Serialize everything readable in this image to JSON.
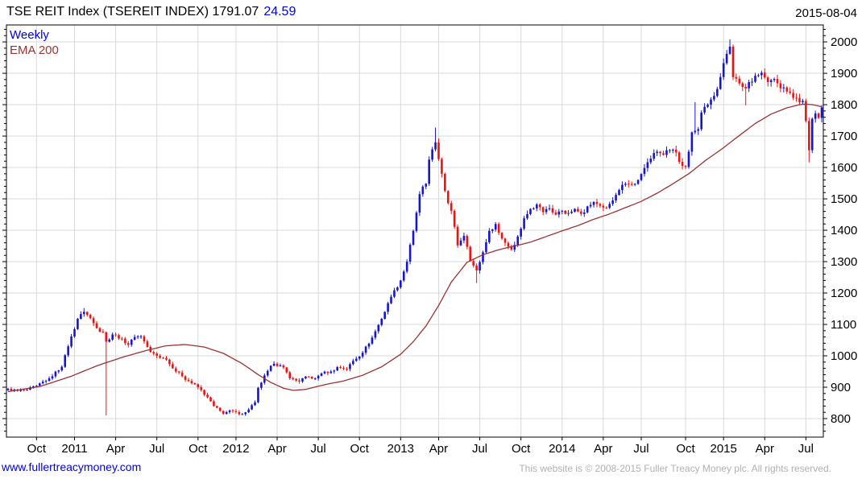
{
  "header": {
    "title": "TSE REIT Index (TSEREIT INDEX) 1791.07",
    "change": "24.59",
    "date": "2015-08-04"
  },
  "legend": {
    "series": "Weekly",
    "overlay": "EMA 200"
  },
  "footer": {
    "link": "www.fullertreacymoney.com",
    "copyright": "This website is © 2008-2015 Fuller Treacy Money plc. All rights reserved."
  },
  "colors": {
    "accent_blue": "#0000dd",
    "candle_up": "#1515d0",
    "candle_down": "#ee1111",
    "ema_line": "#993333",
    "grid": "#d9d9d9",
    "axis": "#000000",
    "muted_gray": "#b0b0b0"
  },
  "chart_data": {
    "type": "candlestick",
    "title": "TSE REIT Index (TSEREIT INDEX)",
    "series_name": "Weekly",
    "overlay_name": "EMA 200",
    "last_close": 1791.07,
    "last_change": 24.59,
    "as_of_date": "2015-08-04",
    "ylim": [
      741,
      2054
    ],
    "y_ticks": [
      800,
      900,
      1000,
      1100,
      1200,
      1300,
      1400,
      1500,
      1600,
      1700,
      1800,
      1900,
      2000
    ],
    "y_minor_step": 20,
    "grid": "on",
    "weeks_total": 258,
    "x_ticks": [
      {
        "label": "Oct",
        "week": 9
      },
      {
        "label": "2011",
        "week": 21
      },
      {
        "label": "Apr",
        "week": 34
      },
      {
        "label": "Jul",
        "week": 47
      },
      {
        "label": "Oct",
        "week": 60
      },
      {
        "label": "2012",
        "week": 72
      },
      {
        "label": "Apr",
        "week": 85
      },
      {
        "label": "Jul",
        "week": 98
      },
      {
        "label": "Oct",
        "week": 111
      },
      {
        "label": "2013",
        "week": 124
      },
      {
        "label": "Apr",
        "week": 136
      },
      {
        "label": "Jul",
        "week": 149
      },
      {
        "label": "Oct",
        "week": 162
      },
      {
        "label": "2014",
        "week": 175
      },
      {
        "label": "Apr",
        "week": 188
      },
      {
        "label": "Jul",
        "week": 200
      },
      {
        "label": "Oct",
        "week": 214
      },
      {
        "label": "2015",
        "week": 226
      },
      {
        "label": "Apr",
        "week": 239
      },
      {
        "label": "Jul",
        "week": 252
      }
    ],
    "close_anchors": [
      [
        0,
        895
      ],
      [
        3,
        888
      ],
      [
        6,
        892
      ],
      [
        9,
        905
      ],
      [
        13,
        928
      ],
      [
        17,
        965
      ],
      [
        19,
        1030
      ],
      [
        22,
        1118
      ],
      [
        24,
        1140
      ],
      [
        26,
        1120
      ],
      [
        28,
        1088
      ],
      [
        30,
        1075
      ],
      [
        31,
        1045
      ],
      [
        33,
        1068
      ],
      [
        36,
        1055
      ],
      [
        38,
        1035
      ],
      [
        40,
        1060
      ],
      [
        42,
        1062
      ],
      [
        45,
        1012
      ],
      [
        47,
        1000
      ],
      [
        50,
        988
      ],
      [
        52,
        960
      ],
      [
        55,
        935
      ],
      [
        57,
        920
      ],
      [
        60,
        900
      ],
      [
        63,
        868
      ],
      [
        65,
        840
      ],
      [
        68,
        815
      ],
      [
        70,
        826
      ],
      [
        73,
        814
      ],
      [
        75,
        820
      ],
      [
        78,
        852
      ],
      [
        79,
        898
      ],
      [
        82,
        952
      ],
      [
        84,
        975
      ],
      [
        87,
        963
      ],
      [
        89,
        928
      ],
      [
        92,
        918
      ],
      [
        94,
        934
      ],
      [
        97,
        928
      ],
      [
        99,
        944
      ],
      [
        102,
        950
      ],
      [
        104,
        964
      ],
      [
        107,
        958
      ],
      [
        109,
        984
      ],
      [
        112,
        1010
      ],
      [
        115,
        1058
      ],
      [
        118,
        1118
      ],
      [
        121,
        1188
      ],
      [
        124,
        1240
      ],
      [
        126,
        1300
      ],
      [
        128,
        1398
      ],
      [
        130,
        1515
      ],
      [
        132,
        1548
      ],
      [
        133,
        1625
      ],
      [
        135,
        1680
      ],
      [
        137,
        1580
      ],
      [
        138,
        1525
      ],
      [
        140,
        1462
      ],
      [
        142,
        1352
      ],
      [
        144,
        1382
      ],
      [
        146,
        1302
      ],
      [
        148,
        1272
      ],
      [
        150,
        1330
      ],
      [
        152,
        1398
      ],
      [
        154,
        1420
      ],
      [
        155,
        1392
      ],
      [
        157,
        1360
      ],
      [
        159,
        1338
      ],
      [
        161,
        1380
      ],
      [
        163,
        1438
      ],
      [
        165,
        1468
      ],
      [
        167,
        1482
      ],
      [
        169,
        1458
      ],
      [
        171,
        1470
      ],
      [
        173,
        1450
      ],
      [
        175,
        1462
      ],
      [
        177,
        1455
      ],
      [
        179,
        1468
      ],
      [
        181,
        1452
      ],
      [
        183,
        1476
      ],
      [
        185,
        1490
      ],
      [
        187,
        1478
      ],
      [
        189,
        1472
      ],
      [
        191,
        1495
      ],
      [
        193,
        1528
      ],
      [
        195,
        1548
      ],
      [
        197,
        1545
      ],
      [
        199,
        1560
      ],
      [
        201,
        1598
      ],
      [
        203,
        1628
      ],
      [
        205,
        1650
      ],
      [
        207,
        1640
      ],
      [
        209,
        1655
      ],
      [
        211,
        1648
      ],
      [
        212,
        1618
      ],
      [
        214,
        1602
      ],
      [
        216,
        1712
      ],
      [
        218,
        1722
      ],
      [
        219,
        1775
      ],
      [
        221,
        1800
      ],
      [
        223,
        1828
      ],
      [
        225,
        1888
      ],
      [
        227,
        1962
      ],
      [
        228,
        1985
      ],
      [
        229,
        1888
      ],
      [
        231,
        1868
      ],
      [
        233,
        1852
      ],
      [
        234,
        1872
      ],
      [
        236,
        1892
      ],
      [
        238,
        1902
      ],
      [
        240,
        1872
      ],
      [
        242,
        1882
      ],
      [
        244,
        1852
      ],
      [
        246,
        1842
      ],
      [
        248,
        1822
      ],
      [
        250,
        1808
      ],
      [
        251,
        1812
      ],
      [
        252,
        1748
      ],
      [
        253,
        1655
      ],
      [
        254,
        1755
      ],
      [
        255,
        1772
      ],
      [
        256,
        1758
      ],
      [
        257,
        1791.07
      ]
    ],
    "wick_overrides": [
      {
        "week": 24,
        "high": 1152
      },
      {
        "week": 31,
        "low": 810
      },
      {
        "week": 135,
        "high": 1727
      },
      {
        "week": 148,
        "low": 1232
      },
      {
        "week": 217,
        "high": 1808
      },
      {
        "week": 228,
        "high": 2008
      },
      {
        "week": 233,
        "low": 1798
      },
      {
        "week": 253,
        "low": 1616
      }
    ],
    "ema_anchors": [
      [
        0,
        886
      ],
      [
        10,
        902
      ],
      [
        20,
        935
      ],
      [
        28,
        968
      ],
      [
        36,
        995
      ],
      [
        44,
        1018
      ],
      [
        50,
        1032
      ],
      [
        56,
        1036
      ],
      [
        62,
        1028
      ],
      [
        68,
        1008
      ],
      [
        74,
        975
      ],
      [
        79,
        940
      ],
      [
        83,
        915
      ],
      [
        87,
        897
      ],
      [
        90,
        890
      ],
      [
        94,
        893
      ],
      [
        100,
        908
      ],
      [
        106,
        920
      ],
      [
        112,
        938
      ],
      [
        118,
        965
      ],
      [
        124,
        1005
      ],
      [
        128,
        1045
      ],
      [
        132,
        1095
      ],
      [
        136,
        1160
      ],
      [
        140,
        1235
      ],
      [
        145,
        1298
      ],
      [
        150,
        1322
      ],
      [
        155,
        1338
      ],
      [
        160,
        1350
      ],
      [
        165,
        1362
      ],
      [
        170,
        1380
      ],
      [
        175,
        1398
      ],
      [
        180,
        1415
      ],
      [
        185,
        1435
      ],
      [
        190,
        1452
      ],
      [
        195,
        1472
      ],
      [
        200,
        1492
      ],
      [
        205,
        1518
      ],
      [
        210,
        1548
      ],
      [
        215,
        1580
      ],
      [
        220,
        1620
      ],
      [
        226,
        1663
      ],
      [
        231,
        1702
      ],
      [
        236,
        1740
      ],
      [
        241,
        1770
      ],
      [
        246,
        1790
      ],
      [
        250,
        1800
      ],
      [
        252,
        1802
      ],
      [
        254,
        1800
      ],
      [
        256,
        1796
      ],
      [
        257,
        1793
      ]
    ]
  }
}
